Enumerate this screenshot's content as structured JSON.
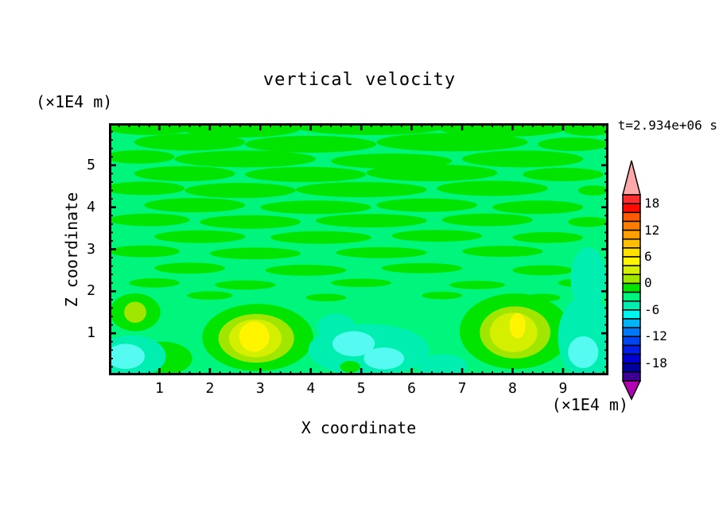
{
  "page": {
    "background": "#FFFFFF"
  },
  "chart_data": {
    "type": "filled_contour",
    "title": "vertical velocity",
    "timestamp": "t=2.934e+06 s",
    "xlabel": "X coordinate",
    "ylabel": "Z coordinate",
    "x_unit": "(×1E4 m)",
    "y_unit": "(×1E4 m)",
    "xlim": [
      0,
      9.9
    ],
    "ylim": [
      0,
      6
    ],
    "x_major_ticks": [
      "1",
      "2",
      "3",
      "4",
      "5",
      "6",
      "7",
      "8",
      "9"
    ],
    "y_major_ticks": [
      "1",
      "2",
      "3",
      "4",
      "5"
    ],
    "minor_tick_step": 0.2,
    "contour_interval": 2,
    "colorbar": {
      "boundary_labels": [
        "18",
        "12",
        "6",
        "0",
        "-6",
        "-12",
        "-18"
      ],
      "over_color": "#FFA8A8",
      "under_color": "#B400B4",
      "segments": [
        {
          "range": "18 to 20",
          "color": "#FF2D2D"
        },
        {
          "range": "16 to 18",
          "color": "#FF0A00"
        },
        {
          "range": "14 to 16",
          "color": "#FF5A00"
        },
        {
          "range": "12 to 14",
          "color": "#FF7D00"
        },
        {
          "range": "10 to 12",
          "color": "#FF9E00"
        },
        {
          "range": "8 to 10",
          "color": "#FFBE00"
        },
        {
          "range": "6 to 8",
          "color": "#FFE100"
        },
        {
          "range": "4 to 6",
          "color": "#FFF500"
        },
        {
          "range": "2 to 4",
          "color": "#D4F000"
        },
        {
          "range": "0 to 2",
          "color": "#A0E600"
        },
        {
          "range": "-2 to 0",
          "color": "#00E400"
        },
        {
          "range": "-4 to -2",
          "color": "#00F57C"
        },
        {
          "range": "-6 to -4",
          "color": "#00EFB0"
        },
        {
          "range": "-8 to -6",
          "color": "#00F7F0"
        },
        {
          "range": "-10 to -8",
          "color": "#00B4F7"
        },
        {
          "range": "-12 to -10",
          "color": "#0078F7"
        },
        {
          "range": "-14 to -12",
          "color": "#0046F0"
        },
        {
          "range": "-16 to -14",
          "color": "#001EE6"
        },
        {
          "range": "-18 to -16",
          "color": "#0000D2"
        },
        {
          "range": "-20 to -18",
          "color": "#0000A0"
        },
        {
          "range": "-22 to -20",
          "color": "#3C0096"
        }
      ]
    },
    "field": {
      "description": "Mostly weak values between -4 and 2 as mottled horizontal streaks; two updraft cores (peak 4-6) near bottom at x=3 and x=8; weak downdraft (cyan, -6 to -8) pockets near bottom-left, mid-bottom at x=5, and right edge at x=9.4.",
      "background_color": "#00F57C",
      "streak_color": "#00E400",
      "updraft_cores": [
        {
          "x": 2.9,
          "z": 0.9,
          "peak_range": "4 to 6"
        },
        {
          "x": 8.1,
          "z": 1.15,
          "peak_range": "4 to 6"
        }
      ],
      "streaks": [
        [
          0.8,
          5.92,
          0.9,
          0.2
        ],
        [
          2.6,
          5.88,
          1.2,
          0.22
        ],
        [
          5.2,
          5.92,
          1.5,
          0.2
        ],
        [
          7.8,
          5.9,
          1.3,
          0.22
        ],
        [
          9.5,
          5.85,
          0.5,
          0.15
        ],
        [
          1.6,
          5.55,
          1.1,
          0.2
        ],
        [
          4.0,
          5.5,
          1.3,
          0.2
        ],
        [
          6.8,
          5.55,
          1.5,
          0.22
        ],
        [
          9.2,
          5.5,
          0.7,
          0.16
        ],
        [
          0.6,
          5.2,
          0.7,
          0.16
        ],
        [
          2.7,
          5.15,
          1.4,
          0.2
        ],
        [
          5.6,
          5.1,
          1.2,
          0.18
        ],
        [
          8.2,
          5.15,
          1.2,
          0.2
        ],
        [
          1.5,
          4.8,
          1.0,
          0.18
        ],
        [
          3.9,
          4.78,
          1.2,
          0.18
        ],
        [
          6.4,
          4.82,
          1.3,
          0.2
        ],
        [
          9.0,
          4.78,
          0.8,
          0.16
        ],
        [
          0.7,
          4.45,
          0.8,
          0.16
        ],
        [
          2.6,
          4.4,
          1.1,
          0.18
        ],
        [
          5.0,
          4.42,
          1.3,
          0.18
        ],
        [
          7.6,
          4.45,
          1.1,
          0.18
        ],
        [
          9.6,
          4.4,
          0.3,
          0.12
        ],
        [
          1.7,
          4.05,
          1.0,
          0.17
        ],
        [
          4.1,
          4.0,
          1.1,
          0.16
        ],
        [
          6.3,
          4.05,
          1.0,
          0.16
        ],
        [
          8.5,
          4.0,
          0.9,
          0.16
        ],
        [
          0.8,
          3.7,
          0.8,
          0.15
        ],
        [
          2.8,
          3.65,
          1.0,
          0.16
        ],
        [
          5.2,
          3.68,
          1.1,
          0.16
        ],
        [
          7.5,
          3.7,
          0.9,
          0.15
        ],
        [
          9.5,
          3.65,
          0.4,
          0.12
        ],
        [
          1.8,
          3.3,
          0.9,
          0.15
        ],
        [
          4.2,
          3.28,
          1.0,
          0.15
        ],
        [
          6.5,
          3.32,
          0.9,
          0.14
        ],
        [
          8.7,
          3.28,
          0.7,
          0.13
        ],
        [
          0.7,
          2.95,
          0.7,
          0.14
        ],
        [
          2.9,
          2.9,
          0.9,
          0.14
        ],
        [
          5.4,
          2.92,
          0.9,
          0.13
        ],
        [
          7.8,
          2.95,
          0.8,
          0.13
        ],
        [
          1.6,
          2.55,
          0.7,
          0.13
        ],
        [
          3.9,
          2.5,
          0.8,
          0.13
        ],
        [
          6.2,
          2.55,
          0.8,
          0.12
        ],
        [
          8.6,
          2.5,
          0.6,
          0.12
        ],
        [
          0.9,
          2.2,
          0.5,
          0.11
        ],
        [
          2.7,
          2.15,
          0.6,
          0.11
        ],
        [
          5.0,
          2.2,
          0.6,
          0.1
        ],
        [
          7.3,
          2.15,
          0.55,
          0.1
        ],
        [
          9.3,
          2.2,
          0.4,
          0.1
        ],
        [
          2.0,
          1.9,
          0.45,
          0.1
        ],
        [
          4.3,
          1.85,
          0.4,
          0.09
        ],
        [
          6.6,
          1.9,
          0.4,
          0.09
        ],
        [
          8.6,
          1.85,
          0.35,
          0.09
        ]
      ],
      "patches": [
        [
          2.95,
          0.9,
          1.1,
          0.8,
          "#00E400"
        ],
        [
          8.05,
          1.05,
          1.1,
          0.9,
          "#00E400"
        ],
        [
          0.52,
          1.5,
          0.5,
          0.45,
          "#00E400"
        ],
        [
          1.05,
          0.4,
          0.6,
          0.4,
          "#00E400"
        ],
        [
          2.92,
          0.88,
          0.75,
          0.58,
          "#A0E600"
        ],
        [
          2.9,
          0.88,
          0.52,
          0.45,
          "#D4F000"
        ],
        [
          2.88,
          0.92,
          0.3,
          0.36,
          "#FFF500"
        ],
        [
          8.05,
          1.02,
          0.7,
          0.62,
          "#A0E600"
        ],
        [
          8.02,
          1.02,
          0.47,
          0.47,
          "#D4F000"
        ],
        [
          8.1,
          1.18,
          0.16,
          0.3,
          "#FFF500"
        ],
        [
          0.52,
          1.5,
          0.22,
          0.25,
          "#A0E600"
        ],
        [
          0.9,
          0.32,
          0.14,
          0.12,
          "#A0E600"
        ],
        [
          0.45,
          0.45,
          0.68,
          0.5,
          "#00EFB0"
        ],
        [
          0.33,
          0.45,
          0.38,
          0.3,
          "#55FAF0"
        ],
        [
          5.15,
          0.6,
          1.2,
          0.62,
          "#00EFB0"
        ],
        [
          4.5,
          1.15,
          0.38,
          0.32,
          "#00EFB0"
        ],
        [
          4.85,
          0.75,
          0.42,
          0.3,
          "#55FAF0"
        ],
        [
          5.45,
          0.4,
          0.4,
          0.26,
          "#55FAF0"
        ],
        [
          4.78,
          0.2,
          0.2,
          0.14,
          "#00E400"
        ],
        [
          6.6,
          0.22,
          0.5,
          0.28,
          "#00EFB0"
        ],
        [
          9.45,
          0.9,
          0.55,
          1.0,
          "#00EFB0"
        ],
        [
          9.5,
          2.3,
          0.35,
          0.75,
          "#00EFB0"
        ],
        [
          9.4,
          0.55,
          0.3,
          0.38,
          "#55FAF0"
        ]
      ]
    }
  }
}
